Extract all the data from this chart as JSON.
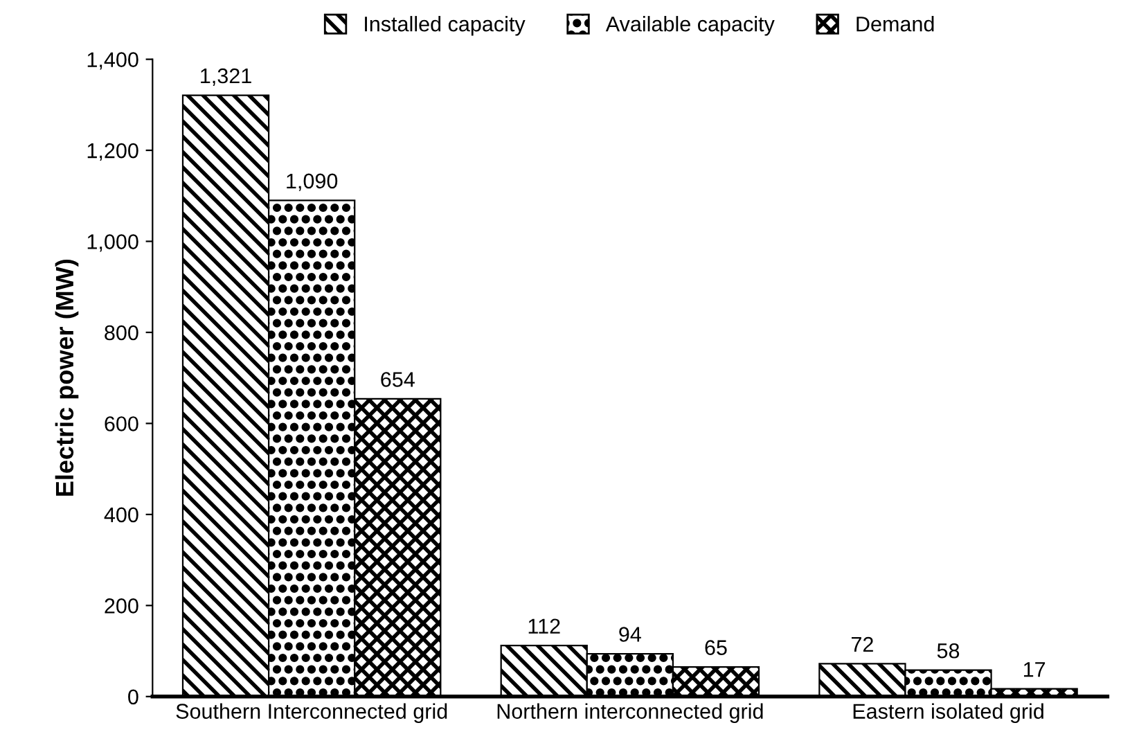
{
  "chart_data": {
    "type": "bar",
    "ylabel": "Electric power (MW)",
    "categories": [
      "Southern Interconnected grid",
      "Northern interconnected grid",
      "Eastern isolated grid"
    ],
    "series": [
      {
        "name": "Installed capacity",
        "color": "#000000",
        "values": [
          1321,
          112,
          72
        ],
        "value_labels": [
          "1,321",
          "112",
          "72"
        ]
      },
      {
        "name": "Available capacity",
        "color": "#000000",
        "values": [
          1090,
          94,
          58
        ],
        "value_labels": [
          "1,090",
          "94",
          "58"
        ]
      },
      {
        "name": "Demand",
        "color": "#000000",
        "values": [
          654,
          65,
          17
        ],
        "value_labels": [
          "654",
          "65",
          "17"
        ]
      }
    ],
    "ylim": [
      0,
      1400
    ],
    "yticks": [
      0,
      {
        "value": 200,
        "label": "200"
      },
      {
        "value": 400,
        "label": "400"
      },
      {
        "value": 600,
        "label": "600"
      },
      {
        "value": 800,
        "label": "800"
      },
      {
        "value": 1000,
        "label": "1,000"
      },
      {
        "value": 1200,
        "label": "1,200"
      },
      {
        "value": 1400,
        "label": "1,400"
      }
    ],
    "grid": false,
    "legend": "top"
  }
}
